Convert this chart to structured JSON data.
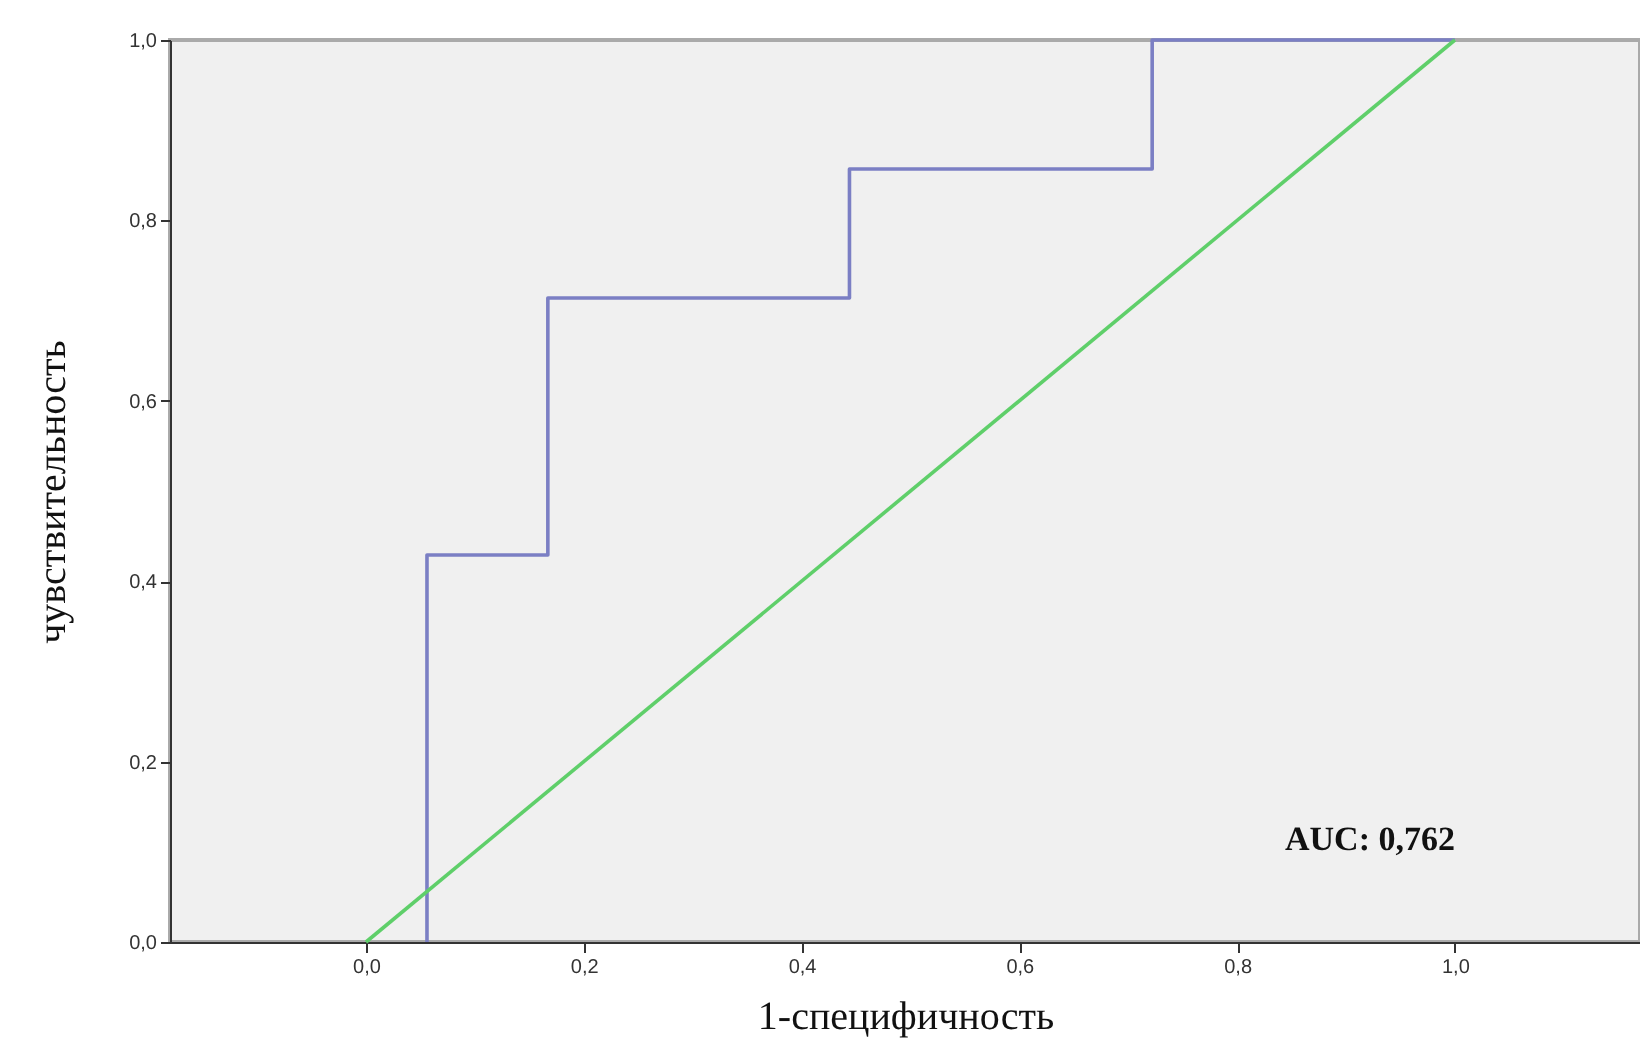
{
  "chart_data": {
    "type": "line",
    "xlabel": "1-специфичность",
    "ylabel": "чувствительность",
    "xlim": [
      -0.18,
      1.17
    ],
    "ylim": [
      0,
      1
    ],
    "xticks": [
      {
        "value": 0,
        "label": "0,0"
      },
      {
        "value": 0.2,
        "label": "0,2"
      },
      {
        "value": 0.4,
        "label": "0,4"
      },
      {
        "value": 0.6,
        "label": "0,6"
      },
      {
        "value": 0.8,
        "label": "0,8"
      },
      {
        "value": 1,
        "label": "1,0"
      }
    ],
    "yticks": [
      {
        "value": 0,
        "label": "0,0"
      },
      {
        "value": 0.2,
        "label": "0,2"
      },
      {
        "value": 0.4,
        "label": "0,4"
      },
      {
        "value": 0.6,
        "label": "0,6"
      },
      {
        "value": 0.8,
        "label": "0,8"
      },
      {
        "value": 1,
        "label": "1,0"
      }
    ],
    "grid": false,
    "marker": "none",
    "line_style": "solid",
    "annotations": [
      "AUC: 0,762"
    ],
    "series": [
      {
        "color": "#7b7fc4",
        "x": [
          0.056,
          0.056,
          0.167,
          0.167,
          0.444,
          0.444,
          0.722,
          0.722,
          1.0
        ],
        "values": [
          0,
          0.429,
          0.429,
          0.714,
          0.714,
          0.857,
          0.857,
          1.0,
          1.0
        ]
      },
      {
        "color": "#5fcf6a",
        "x": [
          0,
          1
        ],
        "values": [
          0,
          1
        ]
      }
    ]
  }
}
